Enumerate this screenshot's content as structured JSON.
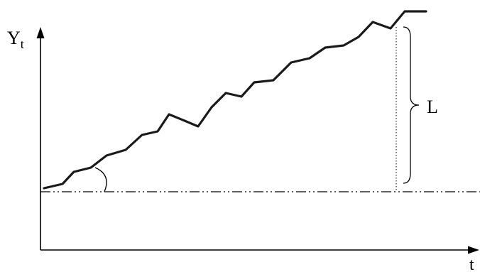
{
  "labels": {
    "y_axis_main": "Y",
    "y_axis_sub": "t",
    "x_axis": "t",
    "brace": "L"
  },
  "colors": {
    "line": "#1a1a1a",
    "axes": "#000000",
    "background": "#ffffff"
  }
}
